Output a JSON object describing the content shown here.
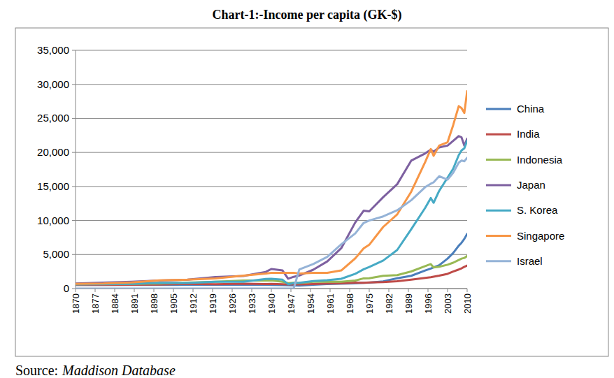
{
  "chart_data": {
    "type": "line",
    "title": "Chart-1:-Income per capita (GK-$)",
    "source_prefix": "Source:",
    "source": "Maddison Database",
    "x": [
      1870,
      1880,
      1890,
      1900,
      1910,
      1920,
      1930,
      1938,
      1940,
      1944,
      1946,
      1948,
      1950,
      1955,
      1960,
      1965,
      1970,
      1973,
      1975,
      1980,
      1985,
      1990,
      1995,
      1997,
      1998,
      2000,
      2003,
      2005,
      2007,
      2008,
      2009,
      2010
    ],
    "xlim": [
      1870,
      2010
    ],
    "xticks": [
      1870,
      1877,
      1884,
      1891,
      1898,
      1905,
      1912,
      1919,
      1926,
      1933,
      1940,
      1947,
      1954,
      1961,
      1968,
      1975,
      1982,
      1989,
      1996,
      2003,
      2010
    ],
    "ylim": [
      0,
      35000
    ],
    "yticks": [
      0,
      {
        "value": 5000,
        "label": "5,000"
      },
      {
        "value": 10000,
        "label": "10,000"
      },
      {
        "value": 15000,
        "label": "15,000"
      },
      {
        "value": 20000,
        "label": "20,000"
      },
      {
        "value": 25000,
        "label": "25,000"
      },
      {
        "value": 30000,
        "label": "30,000"
      },
      {
        "value": 35000,
        "label": "35,000"
      }
    ],
    "grid": true,
    "legend": "right",
    "series": [
      {
        "name": "China",
        "color": "#4a7ebb",
        "values": [
          530,
          540,
          540,
          545,
          552,
          560,
          567,
          562,
          550,
          520,
          480,
          460,
          448,
          575,
          662,
          706,
          778,
          838,
          874,
          1061,
          1519,
          1871,
          2653,
          2940,
          3117,
          3421,
          4397,
          5220,
          6300,
          6725,
          7300,
          8032
        ]
      },
      {
        "name": "India",
        "color": "#be4b48",
        "values": [
          533,
          550,
          570,
          599,
          697,
          635,
          726,
          668,
          686,
          650,
          617,
          617,
          619,
          676,
          753,
          771,
          868,
          853,
          897,
          938,
          1079,
          1309,
          1568,
          1660,
          1746,
          1892,
          2160,
          2500,
          2800,
          2975,
          3200,
          3372
        ]
      },
      {
        "name": "Indonesia",
        "color": "#98b954",
        "values": [
          654,
          700,
          700,
          745,
          873,
          1000,
          1170,
          1175,
          1200,
          1000,
          800,
          850,
          817,
          1000,
          1019,
          990,
          1181,
          1500,
          1505,
          1870,
          1972,
          2516,
          3300,
          3600,
          3100,
          3200,
          3500,
          3800,
          4200,
          4400,
          4500,
          4790
        ]
      },
      {
        "name": "Japan",
        "color": "#7d60a0",
        "values": [
          737,
          863,
          1012,
          1180,
          1304,
          1696,
          1850,
          2449,
          2874,
          2659,
          1444,
          1725,
          1921,
          2771,
          3986,
          5934,
          9714,
          11434,
          11344,
          13428,
          15331,
          18789,
          19849,
          20410,
          20100,
          20738,
          21000,
          21700,
          22400,
          22200,
          21000,
          22000
        ]
      },
      {
        "name": "S. Korea",
        "color": "#46aac5",
        "values": [
          604,
          650,
          700,
          850,
          815,
          1000,
          1000,
          1400,
          1442,
          1300,
          650,
          800,
          854,
          1100,
          1226,
          1436,
          2167,
          2840,
          3162,
          4114,
          5670,
          8704,
          11850,
          13300,
          12600,
          14350,
          16300,
          17600,
          19600,
          20300,
          20600,
          21700
        ]
      },
      {
        "name": "Singapore",
        "color": "#f79646",
        "values": [
          700,
          750,
          900,
          1200,
          1300,
          1500,
          1900,
          2200,
          2300,
          2300,
          2300,
          2300,
          2219,
          2300,
          2310,
          2667,
          4439,
          5900,
          6430,
          9058,
          10900,
          14220,
          18600,
          20500,
          19500,
          21000,
          21500,
          24000,
          26800,
          26500,
          25800,
          29000
        ]
      },
      {
        "name": "Israel",
        "color": "#95b3d7",
        "values": [
          0,
          0,
          0,
          0,
          0,
          0,
          0,
          0,
          0,
          0,
          0,
          0,
          2817,
          3600,
          4663,
          6500,
          8100,
          9645,
          10000,
          10600,
          11500,
          12968,
          14900,
          15400,
          15600,
          16500,
          16000,
          17000,
          18500,
          18800,
          18700,
          19200
        ]
      }
    ]
  }
}
